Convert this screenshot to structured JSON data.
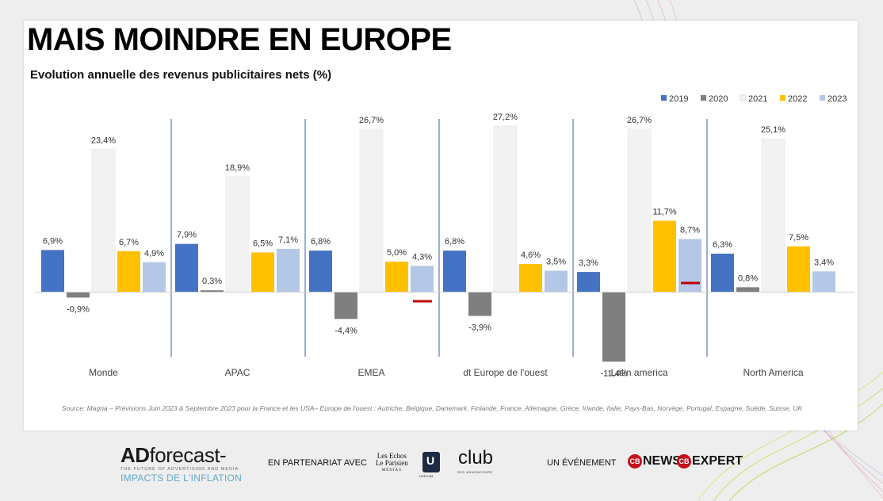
{
  "slide": {
    "title": "MAIS MOINDRE EN EUROPE",
    "subtitle": "Evolution annuelle des revenus publicitaires nets (%)",
    "source": "Source:  Magna – Prévisions Juin 2023  & Septembre  2023 pour la France et les USA– Europe de l'ouest : Autriche, Belgique, Danemark, Finlande, France, Allemagne, Grèce, Irlande, Italie, Pays-Bas, Norvège, Portugal, Espagne, Suède, Suisse, UK"
  },
  "chart_data": {
    "type": "bar",
    "title": "Evolution annuelle des revenus publicitaires nets (%)",
    "categories": [
      "Monde",
      "APAC",
      "EMEA",
      "dt Europe de l'ouest",
      "Latin america",
      "North America"
    ],
    "series": [
      {
        "name": "2019",
        "color": "#4472c4",
        "values": [
          6.9,
          7.9,
          6.8,
          6.8,
          3.3,
          6.3
        ],
        "labels": [
          "6,9%",
          "7,9%",
          "6,8%",
          "6,8%",
          "3,3%",
          "6,3%"
        ]
      },
      {
        "name": "2020",
        "color": "#7f7f7f",
        "values": [
          -0.9,
          0.3,
          -4.4,
          -3.9,
          -11.4,
          0.8
        ],
        "labels": [
          "-0,9%",
          "0,3%",
          "-4,4%",
          "-3,9%",
          "-11,4%",
          "0,8%"
        ]
      },
      {
        "name": "2021",
        "color": "#f2f2f2",
        "values": [
          23.4,
          18.9,
          26.7,
          27.2,
          26.7,
          25.1
        ],
        "labels": [
          "23,4%",
          "18,9%",
          "26,7%",
          "27,2%",
          "26,7%",
          "25,1%"
        ]
      },
      {
        "name": "2022",
        "color": "#ffc000",
        "values": [
          6.7,
          6.5,
          5.0,
          4.6,
          11.7,
          7.5
        ],
        "labels": [
          "6,7%",
          "6,5%",
          "5,0%",
          "4,6%",
          "11,7%",
          "7,5%"
        ]
      },
      {
        "name": "2023",
        "color": "#b4c7e7",
        "values": [
          4.9,
          7.1,
          4.3,
          3.5,
          8.7,
          3.4
        ],
        "labels": [
          "4,9%",
          "7,1%",
          "4,3%",
          "3,5%",
          "8,7%",
          "3,4%"
        ]
      }
    ],
    "markers": [
      {
        "category": "EMEA",
        "series": "2023",
        "value": -1.5,
        "color": "#c00000"
      },
      {
        "category": "Latin america",
        "series": "2023",
        "value": 1.5,
        "color": "#c00000"
      }
    ],
    "ylim": [
      -15,
      32
    ],
    "grid": false,
    "legend": "top-right",
    "xlabel": "",
    "ylabel": ""
  },
  "footer": {
    "brand_ad": "AD",
    "brand_forecast": "forecast-",
    "brand_tagline": "THE FUTURE OF ADVERTISING AND MEDIA",
    "brand_sub": "IMPACTS DE L'INFLATION",
    "partner_label": "EN PARTENARIAT AVEC",
    "partner1_line1": "Les Echos",
    "partner1_line2": "Le Parisien",
    "partner1_line3": "MÉDIAS",
    "partner2": "UDECAM",
    "partner3": "club",
    "partner3_sub": "DES ANNONCEURS",
    "event_label": "UN ÉVÉNEMENT",
    "logo1_mark": "CB",
    "logo1": "NEWS",
    "logo2_mark": "CB",
    "logo2": "EXPERT"
  }
}
